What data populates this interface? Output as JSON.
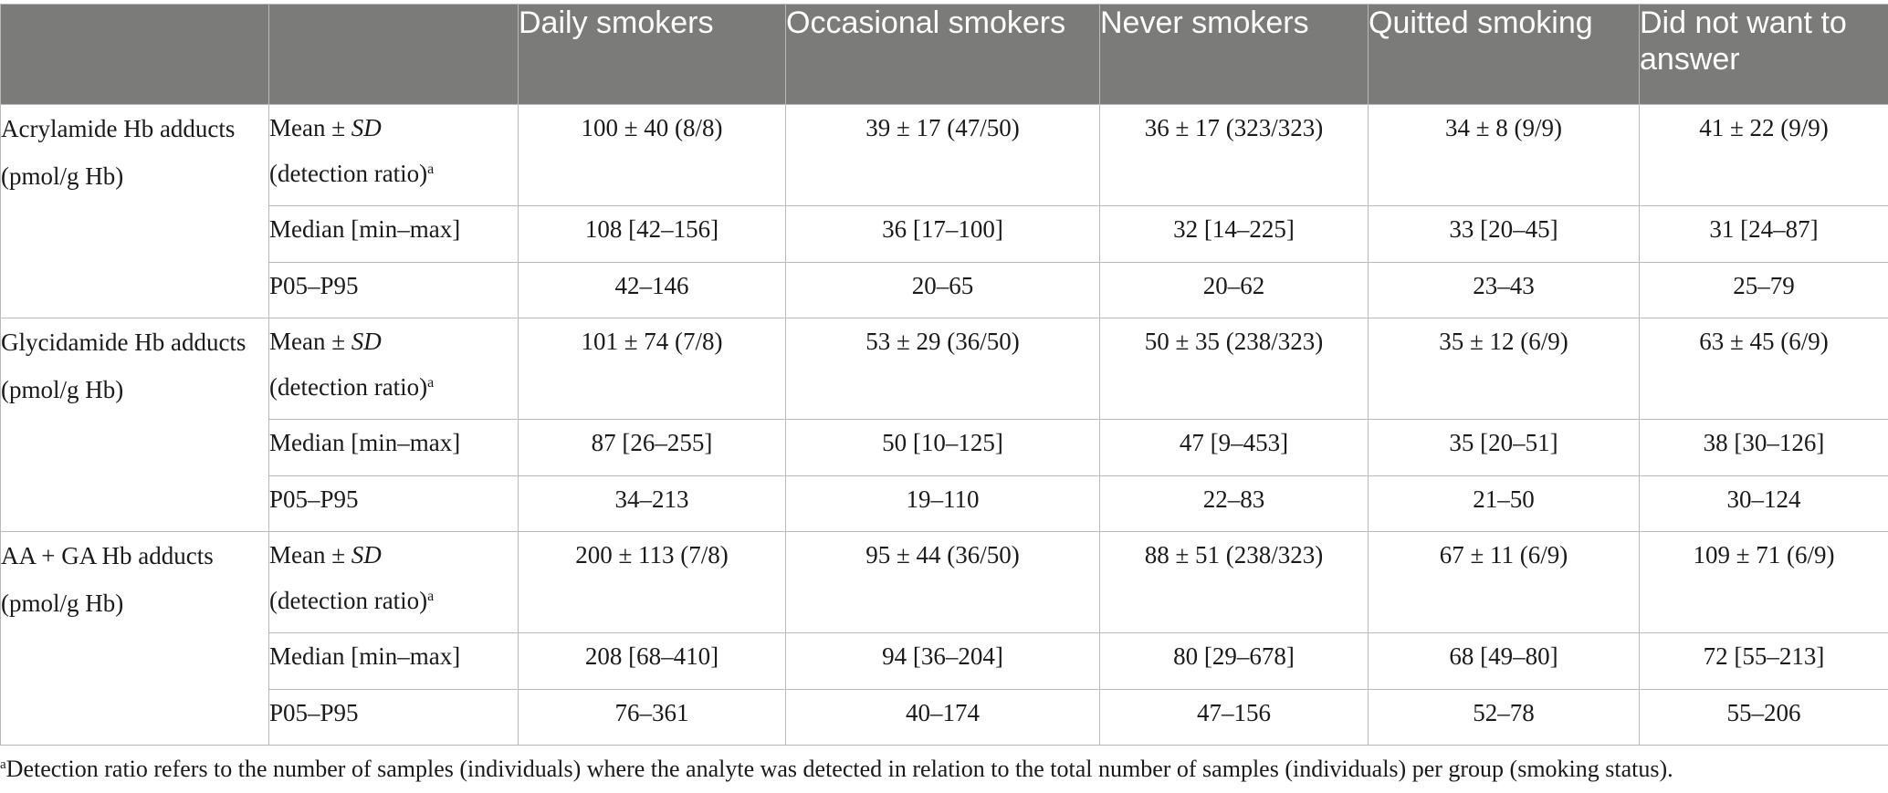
{
  "table": {
    "headers": [
      "",
      "",
      "Daily smokers",
      "Occasional smokers",
      "Never smokers",
      "Quitted smoking",
      "Did not want to answer"
    ],
    "groups": [
      {
        "label": "Acrylamide Hb adducts (pmol/g Hb)",
        "rows": [
          {
            "stat_main": "Mean ± ",
            "stat_sd": "SD",
            "stat_line2": "(detection ratio)",
            "stat_sup": "a",
            "values": [
              "100 ± 40 (8/8)",
              "39 ± 17 (47/50)",
              "36 ± 17 (323/323)",
              "34 ± 8 (9/9)",
              "41 ± 22 (9/9)"
            ]
          },
          {
            "stat": "Median [min–max]",
            "values": [
              "108 [42–156]",
              "36 [17–100]",
              "32 [14–225]",
              "33 [20–45]",
              "31 [24–87]"
            ]
          },
          {
            "stat": "P05–P95",
            "values": [
              "42–146",
              "20–65",
              "20–62",
              "23–43",
              "25–79"
            ]
          }
        ]
      },
      {
        "label": "Glycidamide Hb adducts (pmol/g Hb)",
        "rows": [
          {
            "stat_main": "Mean ± ",
            "stat_sd": "SD",
            "stat_line2": "(detection ratio)",
            "stat_sup": "a",
            "values": [
              "101 ± 74 (7/8)",
              "53 ± 29 (36/50)",
              "50 ± 35 (238/323)",
              "35 ± 12 (6/9)",
              "63 ± 45 (6/9)"
            ]
          },
          {
            "stat": "Median [min–max]",
            "values": [
              "87 [26–255]",
              "50 [10–125]",
              "47 [9–453]",
              "35 [20–51]",
              "38 [30–126]"
            ]
          },
          {
            "stat": "P05–P95",
            "values": [
              "34–213",
              "19–110",
              "22–83",
              "21–50",
              "30–124"
            ]
          }
        ]
      },
      {
        "label": "AA + GA Hb adducts (pmol/g Hb)",
        "rows": [
          {
            "stat_main": "Mean ± ",
            "stat_sd": "SD",
            "stat_line2": "(detection ratio)",
            "stat_sup": "a",
            "values": [
              "200 ± 113 (7/8)",
              "95 ± 44 (36/50)",
              "88 ± 51 (238/323)",
              "67 ± 11 (6/9)",
              "109 ± 71 (6/9)"
            ]
          },
          {
            "stat": "Median [min–max]",
            "values": [
              "208 [68–410]",
              "94 [36–204]",
              "80 [29–678]",
              "68 [49–80]",
              "72 [55–213]"
            ]
          },
          {
            "stat": "P05–P95",
            "values": [
              "76–361",
              "40–174",
              "47–156",
              "52–78",
              "55–206"
            ]
          }
        ]
      }
    ]
  },
  "footnote": {
    "marker": "a",
    "text": "Detection ratio refers to the number of samples (individuals) where the analyte was detected in relation to the total number of samples (individuals) per group (smoking status)."
  },
  "colors": {
    "header_background": "#7b7b7a",
    "header_text": "#ffffff",
    "border": "#b9b9b9"
  }
}
